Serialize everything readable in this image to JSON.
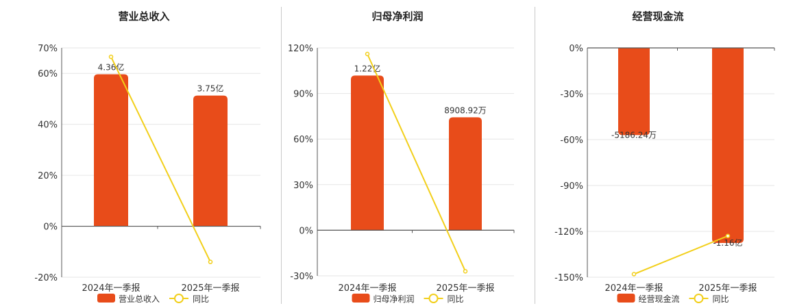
{
  "colors": {
    "bar": "#e84c1a",
    "line": "#f2cf1a",
    "axis": "#555555",
    "grid": "#e6e6e6",
    "text": "#333333"
  },
  "legend": {
    "yoy_label": "同比"
  },
  "chart_data": [
    {
      "type": "bar",
      "title": "营业总收入",
      "categories": [
        "2024年一季报",
        "2025年一季报"
      ],
      "series": [
        {
          "name": "营业总收入",
          "type": "bar",
          "values": [
            4.36,
            3.75
          ],
          "unit": "亿元",
          "labels": [
            "4.36亿",
            "3.75亿"
          ]
        },
        {
          "name": "同比",
          "type": "line",
          "values": [
            66.5,
            -14.0
          ],
          "unit": "%"
        }
      ],
      "yaxis": {
        "ticks": [
          70,
          60,
          40,
          20,
          0,
          -20
        ],
        "tick_labels": [
          "70%",
          "60%",
          "40%",
          "20%",
          "0%",
          "-20%"
        ],
        "ylim": [
          -20,
          70
        ]
      },
      "grid": true,
      "legend_position": "bottom"
    },
    {
      "type": "bar",
      "title": "归母净利润",
      "categories": [
        "2024年一季报",
        "2025年一季报"
      ],
      "series": [
        {
          "name": "归母净利润",
          "type": "bar",
          "values": [
            1.22,
            0.890892
          ],
          "unit": "亿元",
          "labels": [
            "1.22亿",
            "8908.92万"
          ]
        },
        {
          "name": "同比",
          "type": "line",
          "values": [
            116.0,
            -27.0
          ],
          "unit": "%"
        }
      ],
      "yaxis": {
        "ticks": [
          120,
          90,
          60,
          30,
          0,
          -30
        ],
        "tick_labels": [
          "120%",
          "90%",
          "60%",
          "30%",
          "0%",
          "-30%"
        ],
        "ylim": [
          -30,
          120
        ]
      },
      "grid": true,
      "legend_position": "bottom"
    },
    {
      "type": "bar",
      "title": "经营现金流",
      "categories": [
        "2024年一季报",
        "2025年一季报"
      ],
      "series": [
        {
          "name": "经营现金流",
          "type": "bar",
          "values": [
            -0.518624,
            -1.16
          ],
          "unit": "亿元",
          "labels": [
            "-5186.24万",
            "-1.16亿"
          ]
        },
        {
          "name": "同比",
          "type": "line",
          "values": [
            -148.0,
            -123.0
          ],
          "unit": "%"
        }
      ],
      "yaxis": {
        "ticks": [
          0,
          -30,
          -60,
          -90,
          -120,
          -150
        ],
        "tick_labels": [
          "0%",
          "-30%",
          "-60%",
          "-90%",
          "-120%",
          "-150%"
        ],
        "ylim": [
          -150,
          0
        ]
      },
      "grid": true,
      "legend_position": "bottom"
    }
  ]
}
